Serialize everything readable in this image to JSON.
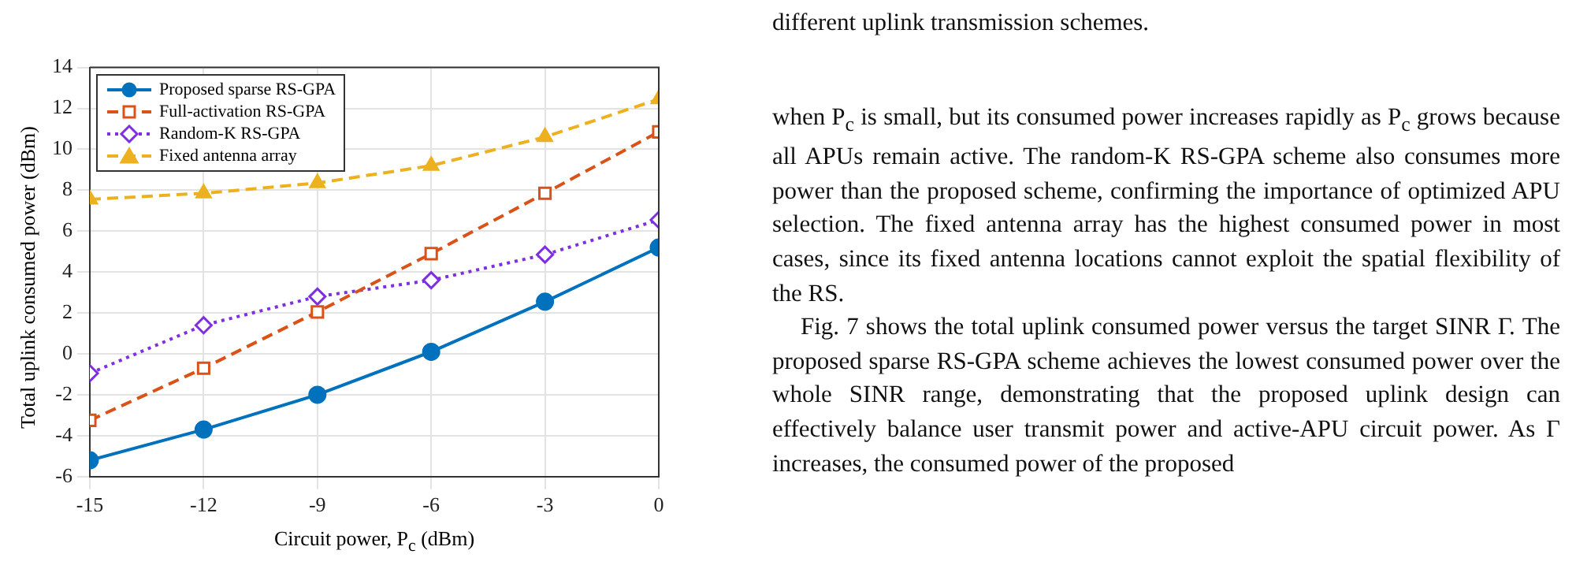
{
  "chart_data": {
    "type": "line",
    "xlabel": "Circuit power, P$_{c}$ (dBm)",
    "ylabel": "Total uplink consumed power (dBm)",
    "x": [
      -15,
      -12,
      -9,
      -6,
      -3,
      0
    ],
    "series": [
      {
        "name": "Proposed sparse RS-GPA",
        "color": "#0072bd",
        "marker": "circle",
        "line_style": "solid",
        "values": [
          -5.2,
          -3.7,
          -2.0,
          0.1,
          2.55,
          5.2
        ]
      },
      {
        "name": "Full-activation RS-GPA",
        "color": "#d95319",
        "marker": "square",
        "line_style": "dashed",
        "values": [
          -3.25,
          -0.7,
          2.05,
          4.9,
          7.85,
          10.85
        ]
      },
      {
        "name": "Random-K RS-GPA",
        "color": "#7e2fdf",
        "marker": "diamond",
        "line_style": "dotted",
        "values": [
          -0.95,
          1.4,
          2.8,
          3.6,
          4.85,
          6.55
        ]
      },
      {
        "name": "Fixed antenna array",
        "color": "#edb120",
        "marker": "triangle",
        "line_style": "dashed",
        "values": [
          7.55,
          7.85,
          8.35,
          9.2,
          10.6,
          12.45
        ]
      }
    ],
    "xlim": [
      -15,
      0
    ],
    "xticks": [
      -15,
      -12,
      -9,
      -6,
      -3,
      0
    ],
    "ylim": [
      -6,
      14
    ],
    "yticks": [
      -6,
      -4,
      -2,
      0,
      2,
      4,
      6,
      8,
      10,
      12,
      14
    ],
    "grid": true,
    "legend": "top left",
    "annotations": [
      "different uplink transmission schemes.",
      "when P$_{c}$ is small, but its consumed power increases rapidly as P$_{c}$ grows because all APUs remain active. The random-K RS-GPA scheme also consumes more power than the proposed scheme, confirming the importance of optimized APU selection. The fixed antenna array has the highest consumed power in most cases, since its fixed antenna locations cannot exploit the spatial flexibility of the RS.",
      "Fig. 7 shows the total uplink consumed power versus the target SINR Γ. The proposed sparse RS-GPA scheme achieves the lowest consumed power over the whole SINR range, demonstrating that the proposed uplink design can effectively balance user transmit power and active-APU circuit power. As Γ increases, the consumed power of the proposed"
    ]
  }
}
